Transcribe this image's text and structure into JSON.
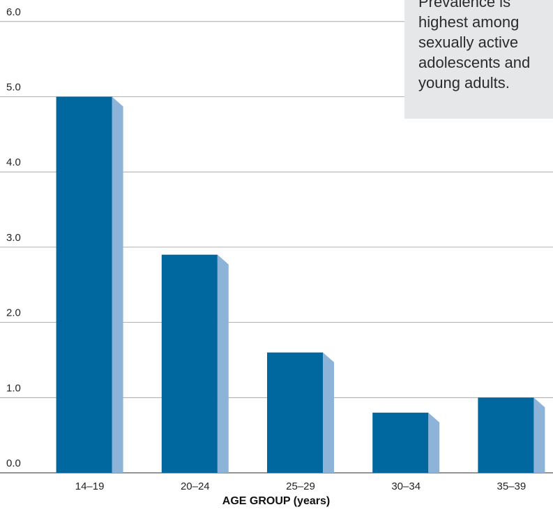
{
  "chart_data": {
    "type": "bar",
    "categories": [
      "14–19",
      "20–24",
      "25–29",
      "30–34",
      "35–39"
    ],
    "values": [
      5.0,
      2.9,
      1.6,
      0.8,
      1.0
    ],
    "ylim": [
      0,
      6
    ],
    "yticks": [
      "0.0",
      "1.0",
      "2.0",
      "3.0",
      "4.0",
      "5.0",
      "6.0"
    ],
    "xlabel": "AGE GROUP (years)",
    "ylabel": "",
    "title": "",
    "grid": true,
    "colors": {
      "bar_front": "#00679f",
      "bar_side": "#8db4d8",
      "gridline": "#9a9a9a"
    },
    "annotation": {
      "lines": [
        "Prevalence is",
        "highest among",
        "sexually active",
        "adolescents and",
        "young adults."
      ],
      "background": "#e6e7e8"
    }
  }
}
